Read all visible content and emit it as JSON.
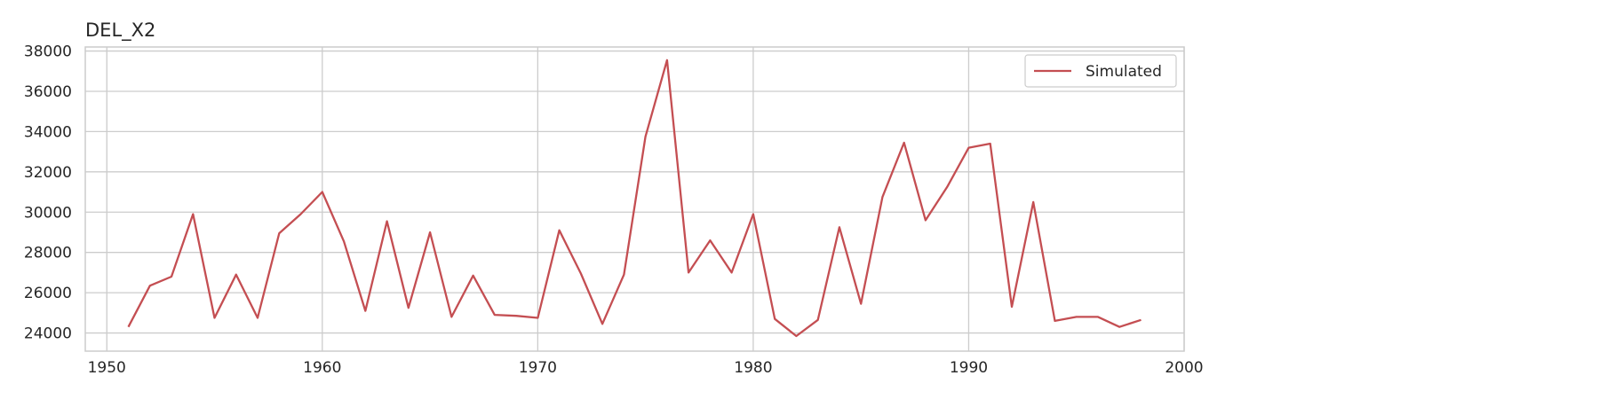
{
  "chart_data": {
    "type": "line",
    "title": "DEL_X2",
    "xlabel": "",
    "ylabel": "",
    "xlim": [
      1949,
      2000
    ],
    "ylim": [
      23100,
      38200
    ],
    "x_ticks": [
      1950,
      1960,
      1970,
      1980,
      1990,
      2000
    ],
    "y_ticks": [
      24000,
      26000,
      28000,
      30000,
      32000,
      34000,
      36000,
      38000
    ],
    "x_tick_labels": [
      "1950",
      "1960",
      "1970",
      "1980",
      "1990",
      "2000"
    ],
    "y_tick_labels": [
      "24000",
      "26000",
      "28000",
      "30000",
      "32000",
      "34000",
      "36000",
      "38000"
    ],
    "grid": true,
    "legend_position": "top-right",
    "x": [
      1951,
      1952,
      1953,
      1954,
      1955,
      1956,
      1957,
      1958,
      1959,
      1960,
      1961,
      1962,
      1963,
      1964,
      1965,
      1966,
      1967,
      1968,
      1969,
      1970,
      1971,
      1972,
      1973,
      1974,
      1975,
      1976,
      1977,
      1978,
      1979,
      1980,
      1981,
      1982,
      1983,
      1984,
      1985,
      1986,
      1987,
      1988,
      1989,
      1990,
      1991,
      1992,
      1993,
      1994,
      1995,
      1996,
      1997,
      1998
    ],
    "series": [
      {
        "name": "Simulated",
        "color": "#c44e52",
        "values": [
          24300,
          26350,
          26800,
          29900,
          24750,
          26900,
          24750,
          28950,
          29900,
          31000,
          28550,
          25100,
          29550,
          25250,
          29000,
          24800,
          26850,
          24900,
          24850,
          24750,
          29100,
          26950,
          24450,
          26900,
          33750,
          37550,
          27000,
          28600,
          27000,
          29900,
          24700,
          23850,
          24650,
          29250,
          25450,
          30750,
          33450,
          29600,
          31250,
          33200,
          33400,
          25300,
          30500,
          24600,
          24800,
          24800,
          24300,
          24650
        ]
      }
    ]
  }
}
